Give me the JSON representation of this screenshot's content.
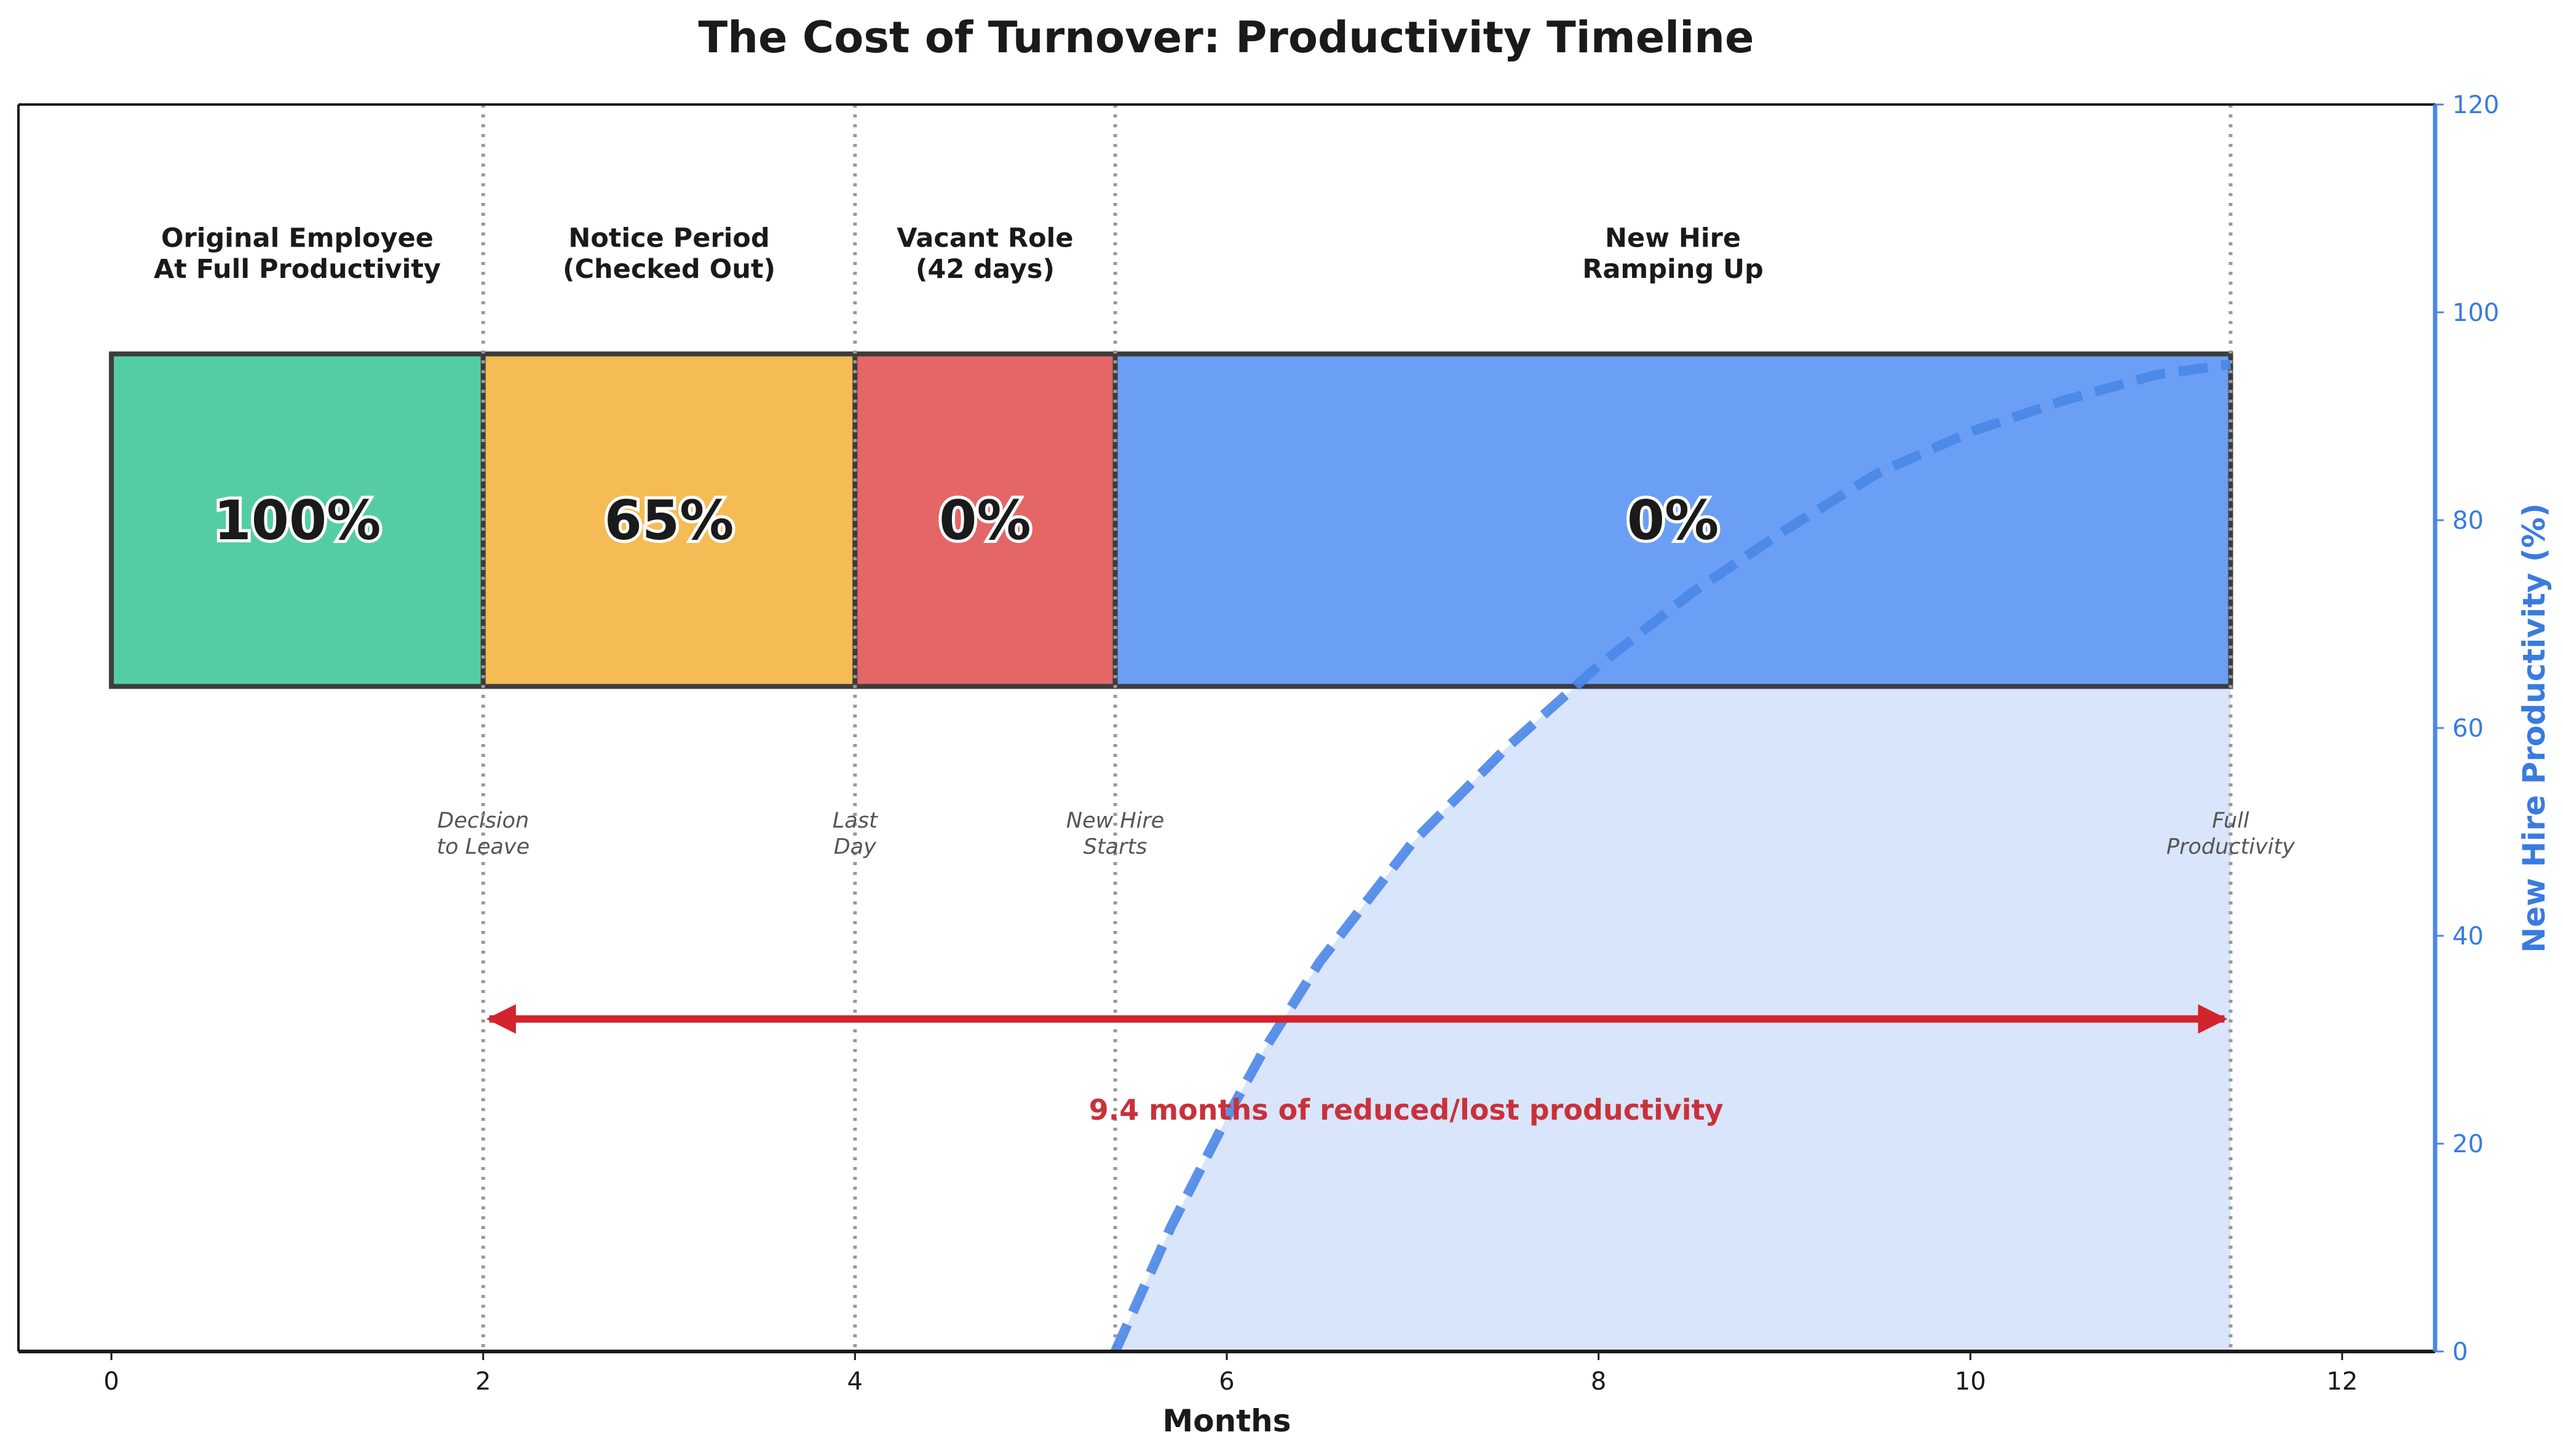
{
  "chart_data": {
    "type": "timeline",
    "title": "The Cost of Turnover: Productivity Timeline",
    "xlabel": "Months",
    "ylabel_right": "New Hire Productivity (%)",
    "xlim": [
      -0.5,
      12.5
    ],
    "ylim_right": [
      0,
      120
    ],
    "x_ticks": [
      0,
      2,
      4,
      6,
      8,
      10,
      12
    ],
    "y_ticks_right": [
      0,
      20,
      40,
      60,
      80,
      100,
      120
    ],
    "phases": [
      {
        "label_line1": "Original Employee",
        "label_line2": "At Full Productivity",
        "start": 0,
        "end": 2,
        "productivity": "100%",
        "color": "#55cda3"
      },
      {
        "label_line1": "Notice Period",
        "label_line2": "(Checked Out)",
        "start": 2,
        "end": 4,
        "productivity": "65%",
        "color": "#f5bb55"
      },
      {
        "label_line1": "Vacant Role",
        "label_line2": "(42 days)",
        "start": 4,
        "end": 5.4,
        "productivity": "0%",
        "color": "#e56666"
      },
      {
        "label_line1": "New Hire",
        "label_line2": "Ramping Up",
        "start": 5.4,
        "end": 11.4,
        "productivity": "0%",
        "color": "#6b9ff5"
      }
    ],
    "events": [
      {
        "x": 2,
        "line1": "Decision",
        "line2": "to Leave"
      },
      {
        "x": 4,
        "line1": "Last",
        "line2": "Day"
      },
      {
        "x": 5.4,
        "line1": "New Hire",
        "line2": "Starts"
      },
      {
        "x": 11.4,
        "line1": "Full",
        "line2": "Productivity"
      }
    ],
    "ramp_series": {
      "name": "New Hire Productivity",
      "start_x": 5.4,
      "end_x": 11.4,
      "x": [
        5.4,
        5.7,
        6.0,
        6.2,
        6.5,
        7.0,
        7.5,
        8.0,
        8.5,
        9.0,
        9.5,
        10.0,
        10.5,
        11.0,
        11.4
      ],
      "y": [
        0,
        12.0,
        22.5,
        29.0,
        37.5,
        49.0,
        58.0,
        66.0,
        73.0,
        79.0,
        84.5,
        88.5,
        91.5,
        94.0,
        95.0
      ],
      "color": "#4a86e8"
    },
    "span": {
      "start": 2,
      "end": 11.4,
      "label": "9.4 months of reduced/lost productivity",
      "color": "#d3232d"
    }
  }
}
